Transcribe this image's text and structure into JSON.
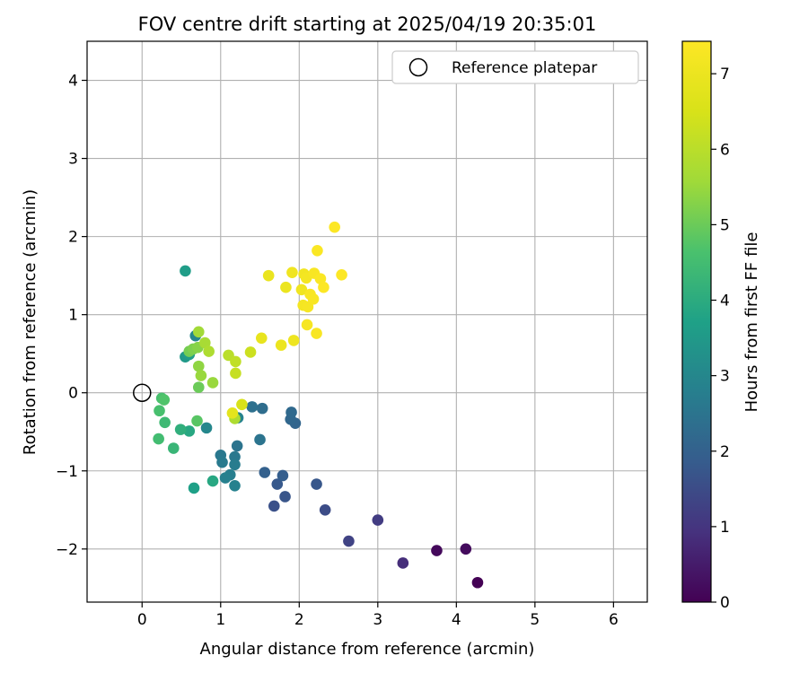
{
  "chart_data": {
    "type": "scatter",
    "title": "FOV centre drift starting at 2025/04/19 20:35:01",
    "xlabel": "Angular distance from reference (arcmin)",
    "ylabel": "Rotation from reference (arcmin)",
    "xlim": [
      -0.7,
      6.43
    ],
    "ylim": [
      -2.68,
      4.5
    ],
    "xticks": [
      0,
      1,
      2,
      3,
      4,
      5,
      6
    ],
    "yticks": [
      -2,
      -1,
      0,
      1,
      2,
      3,
      4
    ],
    "xtick_labels": [
      "0",
      "1",
      "2",
      "3",
      "4",
      "5",
      "6"
    ],
    "ytick_labels": [
      "−2",
      "−1",
      "0",
      "1",
      "2",
      "3",
      "4"
    ],
    "grid": true,
    "legend": {
      "position": "top-right",
      "entries": [
        "Reference platepar"
      ]
    },
    "reference_point": {
      "x": 0,
      "y": 0,
      "label": "Reference platepar"
    },
    "colorbar": {
      "label": "Hours from first FF file",
      "colormap": "viridis",
      "range": [
        0,
        7.43
      ],
      "ticks": [
        0,
        1,
        2,
        3,
        4,
        5,
        6,
        7
      ],
      "tick_labels": [
        "0",
        "1",
        "2",
        "3",
        "4",
        "5",
        "6",
        "7"
      ]
    },
    "points": [
      {
        "x": 4.27,
        "y": -2.43,
        "t": 0.0
      },
      {
        "x": 3.75,
        "y": -2.02,
        "t": 0.15
      },
      {
        "x": 4.12,
        "y": -2.0,
        "t": 0.2
      },
      {
        "x": 3.32,
        "y": -2.18,
        "t": 0.85
      },
      {
        "x": 3.0,
        "y": -1.63,
        "t": 1.15
      },
      {
        "x": 2.63,
        "y": -1.9,
        "t": 1.3
      },
      {
        "x": 2.33,
        "y": -1.5,
        "t": 1.5
      },
      {
        "x": 1.68,
        "y": -1.45,
        "t": 1.6
      },
      {
        "x": 1.82,
        "y": -1.33,
        "t": 1.7
      },
      {
        "x": 2.22,
        "y": -1.17,
        "t": 1.75
      },
      {
        "x": 1.72,
        "y": -1.17,
        "t": 1.8
      },
      {
        "x": 1.79,
        "y": -1.06,
        "t": 1.9
      },
      {
        "x": 1.56,
        "y": -1.02,
        "t": 2.0
      },
      {
        "x": 1.95,
        "y": -0.39,
        "t": 2.1
      },
      {
        "x": 1.89,
        "y": -0.34,
        "t": 2.15
      },
      {
        "x": 1.9,
        "y": -0.25,
        "t": 2.2
      },
      {
        "x": 1.53,
        "y": -0.2,
        "t": 2.3
      },
      {
        "x": 1.4,
        "y": -0.18,
        "t": 2.4
      },
      {
        "x": 1.5,
        "y": -0.6,
        "t": 2.5
      },
      {
        "x": 1.21,
        "y": -0.68,
        "t": 2.5
      },
      {
        "x": 1.0,
        "y": -0.8,
        "t": 2.6
      },
      {
        "x": 1.18,
        "y": -0.82,
        "t": 2.6
      },
      {
        "x": 1.02,
        "y": -0.89,
        "t": 2.65
      },
      {
        "x": 1.18,
        "y": -0.92,
        "t": 2.7
      },
      {
        "x": 1.12,
        "y": -1.05,
        "t": 2.75
      },
      {
        "x": 1.06,
        "y": -1.09,
        "t": 2.8
      },
      {
        "x": 1.18,
        "y": -1.19,
        "t": 2.85
      },
      {
        "x": 1.22,
        "y": -0.32,
        "t": 2.9
      },
      {
        "x": 0.82,
        "y": -0.45,
        "t": 3.0
      },
      {
        "x": 0.68,
        "y": 0.73,
        "t": 3.0
      },
      {
        "x": 0.55,
        "y": 1.56,
        "t": 3.6
      },
      {
        "x": 0.55,
        "y": 0.46,
        "t": 3.5
      },
      {
        "x": 0.6,
        "y": 0.49,
        "t": 3.6
      },
      {
        "x": 0.66,
        "y": -1.22,
        "t": 3.7
      },
      {
        "x": 0.9,
        "y": -1.13,
        "t": 3.9
      },
      {
        "x": 0.6,
        "y": -0.49,
        "t": 3.9
      },
      {
        "x": 0.49,
        "y": -0.47,
        "t": 4.1
      },
      {
        "x": 0.4,
        "y": -0.71,
        "t": 4.3
      },
      {
        "x": 0.29,
        "y": -0.38,
        "t": 4.4
      },
      {
        "x": 0.21,
        "y": -0.59,
        "t": 4.5
      },
      {
        "x": 0.22,
        "y": -0.23,
        "t": 4.6
      },
      {
        "x": 0.25,
        "y": -0.07,
        "t": 4.6
      },
      {
        "x": 0.28,
        "y": -0.09,
        "t": 4.7
      },
      {
        "x": 0.7,
        "y": -0.36,
        "t": 4.8
      },
      {
        "x": 0.72,
        "y": 0.07,
        "t": 5.0
      },
      {
        "x": 0.6,
        "y": 0.53,
        "t": 5.1
      },
      {
        "x": 0.65,
        "y": 0.56,
        "t": 5.2
      },
      {
        "x": 0.71,
        "y": 0.58,
        "t": 5.3
      },
      {
        "x": 0.72,
        "y": 0.34,
        "t": 5.4
      },
      {
        "x": 0.75,
        "y": 0.22,
        "t": 5.5
      },
      {
        "x": 0.9,
        "y": 0.13,
        "t": 5.5
      },
      {
        "x": 0.72,
        "y": 0.78,
        "t": 5.6
      },
      {
        "x": 0.8,
        "y": 0.64,
        "t": 5.7
      },
      {
        "x": 0.85,
        "y": 0.53,
        "t": 5.8
      },
      {
        "x": 1.18,
        "y": -0.33,
        "t": 5.8
      },
      {
        "x": 1.1,
        "y": 0.48,
        "t": 6.0
      },
      {
        "x": 1.19,
        "y": 0.4,
        "t": 6.1
      },
      {
        "x": 1.19,
        "y": 0.25,
        "t": 6.2
      },
      {
        "x": 1.38,
        "y": 0.52,
        "t": 6.3
      },
      {
        "x": 1.27,
        "y": -0.15,
        "t": 6.5
      },
      {
        "x": 1.15,
        "y": -0.26,
        "t": 6.8
      },
      {
        "x": 1.52,
        "y": 0.7,
        "t": 6.9
      },
      {
        "x": 1.61,
        "y": 1.5,
        "t": 6.95
      },
      {
        "x": 1.77,
        "y": 0.61,
        "t": 7.0
      },
      {
        "x": 1.83,
        "y": 1.35,
        "t": 7.0
      },
      {
        "x": 1.93,
        "y": 0.67,
        "t": 7.05
      },
      {
        "x": 1.91,
        "y": 1.54,
        "t": 7.1
      },
      {
        "x": 2.03,
        "y": 1.32,
        "t": 7.1
      },
      {
        "x": 2.06,
        "y": 1.52,
        "t": 7.15
      },
      {
        "x": 2.09,
        "y": 1.47,
        "t": 7.2
      },
      {
        "x": 2.05,
        "y": 1.12,
        "t": 7.2
      },
      {
        "x": 2.11,
        "y": 1.1,
        "t": 7.25
      },
      {
        "x": 2.1,
        "y": 0.87,
        "t": 7.25
      },
      {
        "x": 2.14,
        "y": 1.26,
        "t": 7.3
      },
      {
        "x": 2.18,
        "y": 1.2,
        "t": 7.3
      },
      {
        "x": 2.19,
        "y": 1.53,
        "t": 7.3
      },
      {
        "x": 2.22,
        "y": 0.76,
        "t": 7.3
      },
      {
        "x": 2.23,
        "y": 1.82,
        "t": 7.35
      },
      {
        "x": 2.27,
        "y": 1.46,
        "t": 7.35
      },
      {
        "x": 2.31,
        "y": 1.35,
        "t": 7.4
      },
      {
        "x": 2.45,
        "y": 2.12,
        "t": 7.4
      },
      {
        "x": 2.54,
        "y": 1.51,
        "t": 7.4
      }
    ]
  }
}
